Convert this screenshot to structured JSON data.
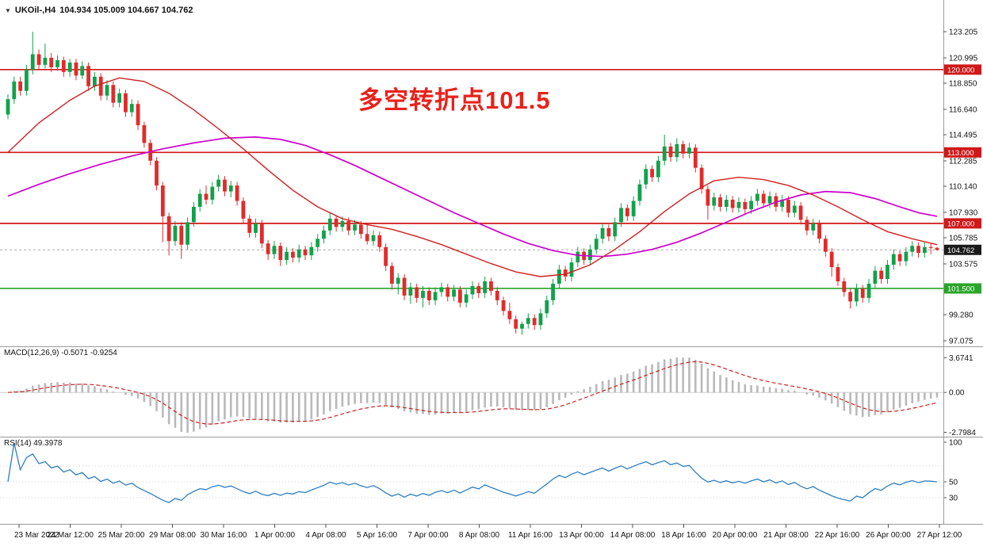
{
  "header": {
    "dropdown_icon": "▼",
    "symbol": "UKOil-,H4",
    "ohlc": "104.934 105.009 104.667 104.762"
  },
  "annotation": {
    "text": "多空转折点101.5",
    "color": "#e8221a"
  },
  "indicators": {
    "macd": {
      "label": "MACD(12,26,9)",
      "values": "-0.5071 -0.9254"
    },
    "rsi": {
      "label": "RSI(14)",
      "value": "49.3978"
    }
  },
  "chart_data": {
    "type": "candlestick",
    "title": "UKOil H4 chart with MACD and RSI",
    "ylim": [
      97.075,
      123.205
    ],
    "up_color": "#12a14b",
    "down_color": "#e12b2b",
    "price_axis_labels": [
      "123.205",
      "120.995",
      "118.850",
      "116.640",
      "114.495",
      "112.285",
      "110.140",
      "107.930",
      "105.785",
      "103.575",
      "99.280",
      "97.075"
    ],
    "levels": [
      {
        "value": 120.0,
        "label": "120.000",
        "color": "#d01818"
      },
      {
        "value": 113.0,
        "label": "113.000",
        "color": "#d01818"
      },
      {
        "value": 107.0,
        "label": "107.000",
        "color": "#d01818"
      },
      {
        "value": 101.5,
        "label": "101.500",
        "color": "#2aa52a"
      }
    ],
    "current_price": {
      "value": 104.762,
      "label": "104.762",
      "badge_color": "#1a1a1a"
    },
    "candles": [
      [
        116.2,
        117.9,
        115.8,
        117.5
      ],
      [
        117.5,
        119.4,
        117.1,
        119.0
      ],
      [
        119.0,
        119.4,
        117.8,
        118.2
      ],
      [
        118.2,
        120.4,
        117.8,
        120.0
      ],
      [
        120.0,
        123.2,
        119.6,
        121.3
      ],
      [
        121.3,
        121.7,
        120.0,
        120.4
      ],
      [
        120.4,
        122.2,
        120.1,
        121.0
      ],
      [
        121.0,
        121.4,
        119.8,
        120.2
      ],
      [
        120.2,
        121.2,
        119.9,
        120.8
      ],
      [
        120.8,
        121.1,
        119.4,
        119.8
      ],
      [
        119.8,
        120.9,
        119.4,
        120.6
      ],
      [
        120.6,
        120.9,
        119.1,
        119.5
      ],
      [
        119.5,
        120.7,
        119.2,
        120.3
      ],
      [
        120.3,
        120.6,
        118.2,
        118.6
      ],
      [
        118.6,
        119.8,
        118.2,
        119.4
      ],
      [
        119.4,
        119.7,
        117.4,
        117.8
      ],
      [
        117.8,
        119.1,
        117.4,
        118.7
      ],
      [
        118.7,
        119.0,
        116.8,
        117.2
      ],
      [
        117.2,
        118.4,
        116.8,
        118.0
      ],
      [
        118.0,
        118.3,
        116.0,
        116.4
      ],
      [
        116.4,
        117.5,
        116.0,
        117.1
      ],
      [
        117.1,
        117.4,
        114.9,
        115.3
      ],
      [
        115.3,
        115.6,
        113.4,
        113.8
      ],
      [
        113.8,
        114.1,
        111.9,
        112.3
      ],
      [
        112.3,
        112.6,
        109.8,
        110.2
      ],
      [
        110.2,
        110.5,
        105.4,
        107.6
      ],
      [
        107.6,
        107.9,
        104.3,
        105.5
      ],
      [
        105.5,
        107.2,
        105.1,
        106.8
      ],
      [
        106.8,
        107.1,
        104.0,
        105.2
      ],
      [
        105.2,
        107.5,
        104.8,
        107.1
      ],
      [
        107.1,
        108.8,
        106.7,
        108.4
      ],
      [
        108.4,
        109.9,
        108.0,
        109.5
      ],
      [
        109.5,
        110.2,
        108.6,
        109.0
      ],
      [
        109.0,
        110.5,
        108.6,
        110.1
      ],
      [
        110.1,
        111.1,
        109.7,
        110.7
      ],
      [
        110.7,
        111.0,
        109.3,
        109.7
      ],
      [
        109.7,
        110.6,
        109.2,
        110.2
      ],
      [
        110.2,
        110.5,
        108.5,
        108.9
      ],
      [
        108.9,
        109.2,
        107.0,
        107.4
      ],
      [
        107.4,
        107.7,
        105.8,
        106.2
      ],
      [
        106.2,
        107.4,
        105.8,
        107.0
      ],
      [
        107.0,
        107.3,
        104.9,
        105.3
      ],
      [
        105.3,
        105.6,
        103.9,
        104.4
      ],
      [
        104.4,
        105.5,
        104.0,
        105.1
      ],
      [
        105.1,
        105.4,
        103.4,
        103.9
      ],
      [
        103.9,
        105.0,
        103.5,
        104.6
      ],
      [
        104.6,
        104.9,
        103.7,
        104.1
      ],
      [
        104.1,
        105.2,
        103.7,
        104.8
      ],
      [
        104.8,
        105.1,
        103.9,
        104.3
      ],
      [
        104.3,
        105.4,
        103.9,
        105.0
      ],
      [
        105.0,
        106.1,
        104.6,
        105.7
      ],
      [
        105.7,
        106.8,
        105.3,
        106.4
      ],
      [
        106.4,
        107.9,
        106.0,
        107.4
      ],
      [
        107.4,
        107.7,
        106.3,
        106.7
      ],
      [
        106.7,
        107.6,
        106.3,
        107.2
      ],
      [
        107.2,
        107.5,
        106.0,
        106.4
      ],
      [
        106.4,
        107.3,
        106.0,
        106.9
      ],
      [
        106.9,
        107.2,
        105.7,
        106.1
      ],
      [
        106.1,
        106.9,
        105.2,
        105.5
      ],
      [
        105.5,
        106.4,
        105.1,
        106.0
      ],
      [
        106.0,
        106.3,
        104.6,
        105.0
      ],
      [
        105.0,
        105.3,
        103.0,
        103.4
      ],
      [
        103.4,
        103.7,
        101.4,
        101.9
      ],
      [
        101.9,
        102.8,
        101.0,
        102.4
      ],
      [
        102.4,
        102.7,
        100.5,
        100.9
      ],
      [
        100.9,
        102.0,
        100.2,
        101.6
      ],
      [
        101.6,
        101.9,
        100.3,
        100.7
      ],
      [
        100.7,
        101.7,
        99.9,
        101.3
      ],
      [
        101.3,
        101.6,
        100.1,
        100.5
      ],
      [
        100.5,
        101.6,
        100.1,
        101.2
      ],
      [
        101.2,
        102.0,
        100.8,
        101.6
      ],
      [
        101.6,
        101.9,
        100.4,
        100.8
      ],
      [
        100.8,
        101.8,
        100.4,
        101.4
      ],
      [
        101.4,
        101.7,
        99.9,
        100.3
      ],
      [
        100.3,
        101.4,
        99.9,
        101.0
      ],
      [
        101.0,
        102.1,
        100.6,
        101.7
      ],
      [
        101.7,
        102.0,
        100.7,
        101.1
      ],
      [
        101.1,
        102.5,
        100.7,
        102.1
      ],
      [
        102.1,
        102.4,
        100.9,
        101.3
      ],
      [
        101.3,
        101.6,
        100.1,
        100.5
      ],
      [
        100.5,
        100.8,
        99.2,
        99.6
      ],
      [
        99.6,
        100.3,
        98.5,
        98.9
      ],
      [
        98.9,
        99.2,
        97.7,
        98.1
      ],
      [
        98.1,
        98.7,
        97.6,
        98.5
      ],
      [
        98.5,
        99.4,
        98.1,
        99.0
      ],
      [
        99.0,
        99.3,
        98.0,
        98.4
      ],
      [
        98.4,
        99.8,
        98.0,
        99.4
      ],
      [
        99.4,
        100.9,
        99.0,
        100.5
      ],
      [
        100.5,
        102.3,
        100.1,
        101.9
      ],
      [
        101.9,
        103.5,
        101.5,
        103.1
      ],
      [
        103.1,
        103.4,
        102.1,
        102.5
      ],
      [
        102.5,
        104.1,
        102.1,
        103.7
      ],
      [
        103.7,
        105.0,
        103.3,
        104.6
      ],
      [
        104.6,
        104.9,
        103.5,
        103.9
      ],
      [
        103.9,
        105.2,
        103.5,
        104.8
      ],
      [
        104.8,
        106.1,
        104.4,
        105.7
      ],
      [
        105.7,
        107.0,
        105.3,
        106.6
      ],
      [
        106.6,
        106.9,
        105.5,
        105.9
      ],
      [
        105.9,
        107.5,
        105.5,
        107.1
      ],
      [
        107.1,
        108.7,
        106.7,
        108.3
      ],
      [
        108.3,
        108.6,
        107.2,
        107.6
      ],
      [
        107.6,
        109.3,
        107.2,
        108.9
      ],
      [
        108.9,
        110.7,
        108.5,
        110.3
      ],
      [
        110.3,
        112.0,
        109.9,
        111.6
      ],
      [
        111.6,
        111.9,
        110.5,
        110.9
      ],
      [
        110.9,
        112.7,
        110.5,
        112.3
      ],
      [
        112.3,
        114.5,
        111.9,
        113.5
      ],
      [
        113.5,
        113.8,
        112.2,
        112.6
      ],
      [
        112.6,
        114.2,
        112.2,
        113.7
      ],
      [
        113.7,
        114.0,
        112.5,
        112.9
      ],
      [
        112.9,
        113.8,
        112.5,
        113.4
      ],
      [
        113.4,
        113.7,
        111.3,
        111.7
      ],
      [
        111.7,
        112.0,
        109.5,
        109.9
      ],
      [
        109.9,
        110.2,
        107.3,
        108.5
      ],
      [
        108.5,
        109.6,
        108.1,
        109.2
      ],
      [
        109.2,
        109.5,
        108.0,
        108.4
      ],
      [
        108.4,
        109.4,
        108.0,
        109.0
      ],
      [
        109.0,
        109.3,
        107.9,
        108.3
      ],
      [
        108.3,
        109.2,
        107.9,
        108.8
      ],
      [
        108.8,
        109.1,
        107.8,
        108.2
      ],
      [
        108.2,
        109.3,
        107.8,
        108.9
      ],
      [
        108.9,
        109.9,
        108.5,
        109.5
      ],
      [
        109.5,
        109.8,
        108.3,
        108.7
      ],
      [
        108.7,
        109.7,
        108.3,
        109.3
      ],
      [
        109.3,
        109.6,
        108.0,
        108.4
      ],
      [
        108.4,
        109.4,
        108.0,
        109.0
      ],
      [
        109.0,
        109.3,
        107.5,
        107.9
      ],
      [
        107.9,
        108.9,
        107.5,
        108.5
      ],
      [
        108.5,
        108.8,
        106.9,
        107.3
      ],
      [
        107.3,
        107.6,
        106.0,
        106.4
      ],
      [
        106.4,
        107.4,
        106.0,
        107.0
      ],
      [
        107.0,
        107.3,
        105.3,
        105.7
      ],
      [
        105.7,
        106.0,
        104.2,
        104.6
      ],
      [
        104.6,
        104.9,
        102.5,
        103.3
      ],
      [
        103.3,
        103.6,
        101.7,
        102.1
      ],
      [
        102.1,
        102.4,
        100.8,
        101.2
      ],
      [
        101.2,
        101.5,
        99.8,
        100.4
      ],
      [
        100.4,
        101.9,
        100.0,
        101.5
      ],
      [
        101.5,
        101.8,
        100.3,
        100.7
      ],
      [
        100.7,
        102.3,
        100.3,
        101.9
      ],
      [
        101.9,
        103.4,
        101.5,
        103.0
      ],
      [
        103.0,
        103.3,
        101.9,
        102.3
      ],
      [
        102.3,
        103.9,
        101.9,
        103.5
      ],
      [
        103.5,
        104.8,
        103.1,
        104.4
      ],
      [
        104.4,
        104.7,
        103.4,
        103.8
      ],
      [
        103.8,
        105.0,
        103.4,
        104.6
      ],
      [
        104.6,
        105.5,
        104.2,
        105.1
      ],
      [
        105.1,
        105.4,
        104.1,
        104.5
      ],
      [
        104.5,
        105.4,
        104.1,
        105.0
      ],
      [
        105.0,
        105.3,
        104.4,
        104.93
      ],
      [
        104.934,
        105.009,
        104.667,
        104.762
      ]
    ],
    "ma_fast": {
      "name": "MA fast",
      "color": "#d02020",
      "points": [
        [
          0,
          113.0
        ],
        [
          5,
          115.5
        ],
        [
          10,
          117.4
        ],
        [
          14,
          118.6
        ],
        [
          18,
          119.3
        ],
        [
          22,
          119.0
        ],
        [
          26,
          118.0
        ],
        [
          30,
          116.6
        ],
        [
          34,
          115.0
        ],
        [
          38,
          113.3
        ],
        [
          42,
          111.5
        ],
        [
          46,
          109.8
        ],
        [
          50,
          108.4
        ],
        [
          54,
          107.4
        ],
        [
          58,
          106.9
        ],
        [
          62,
          106.5
        ],
        [
          66,
          105.9
        ],
        [
          70,
          105.2
        ],
        [
          74,
          104.4
        ],
        [
          78,
          103.6
        ],
        [
          82,
          102.9
        ],
        [
          86,
          102.5
        ],
        [
          90,
          102.7
        ],
        [
          94,
          103.5
        ],
        [
          98,
          104.8
        ],
        [
          102,
          106.3
        ],
        [
          106,
          108.0
        ],
        [
          110,
          109.5
        ],
        [
          114,
          110.6
        ],
        [
          118,
          110.9
        ],
        [
          122,
          110.7
        ],
        [
          126,
          110.2
        ],
        [
          130,
          109.4
        ],
        [
          134,
          108.4
        ],
        [
          138,
          107.3
        ],
        [
          142,
          106.3
        ],
        [
          146,
          105.7
        ],
        [
          150,
          105.2
        ]
      ]
    },
    "ma_slow": {
      "name": "MA slow",
      "color": "#cc00cc",
      "points": [
        [
          0,
          109.3
        ],
        [
          5,
          110.3
        ],
        [
          10,
          111.2
        ],
        [
          15,
          112.0
        ],
        [
          20,
          112.7
        ],
        [
          25,
          113.3
        ],
        [
          30,
          113.8
        ],
        [
          35,
          114.2
        ],
        [
          40,
          114.3
        ],
        [
          44,
          114.1
        ],
        [
          48,
          113.6
        ],
        [
          52,
          112.8
        ],
        [
          56,
          111.9
        ],
        [
          60,
          110.9
        ],
        [
          64,
          109.9
        ],
        [
          68,
          108.9
        ],
        [
          72,
          107.9
        ],
        [
          76,
          107.0
        ],
        [
          80,
          106.1
        ],
        [
          84,
          105.3
        ],
        [
          88,
          104.7
        ],
        [
          92,
          104.3
        ],
        [
          96,
          104.2
        ],
        [
          100,
          104.4
        ],
        [
          104,
          104.8
        ],
        [
          108,
          105.4
        ],
        [
          112,
          106.2
        ],
        [
          116,
          107.1
        ],
        [
          120,
          108.0
        ],
        [
          124,
          108.8
        ],
        [
          128,
          109.4
        ],
        [
          132,
          109.7
        ],
        [
          136,
          109.6
        ],
        [
          140,
          109.1
        ],
        [
          144,
          108.4
        ],
        [
          147,
          107.9
        ],
        [
          150,
          107.6
        ]
      ]
    },
    "macd": {
      "params": "12,26,9",
      "value": -0.5071,
      "signal": -0.9254,
      "axis_labels": [
        "3.6741",
        "0.00",
        "-2.7984"
      ],
      "bar_color": "#b9b9b9",
      "signal_color": "#cc2222"
    },
    "rsi": {
      "period": 14,
      "value": 49.3978,
      "axis_labels": [
        "100",
        "50",
        "30"
      ],
      "levels": [
        70,
        50,
        30
      ],
      "line_color": "#2d7fc1"
    },
    "time_labels": [
      "23 Mar 2022",
      "24 Mar 12:00",
      "25 Mar 20:00",
      "29 Mar 08:00",
      "30 Mar 16:00",
      "1 Apr 00:00",
      "4 Apr 08:00",
      "5 Apr 16:00",
      "7 Apr 00:00",
      "8 Apr 08:00",
      "11 Apr 16:00",
      "13 Apr 00:00",
      "14 Apr 08:00",
      "18 Apr 16:00",
      "20 Apr 00:00",
      "21 Apr 08:00",
      "22 Apr 16:00",
      "26 Apr 00:00",
      "27 Apr 12:00"
    ]
  }
}
